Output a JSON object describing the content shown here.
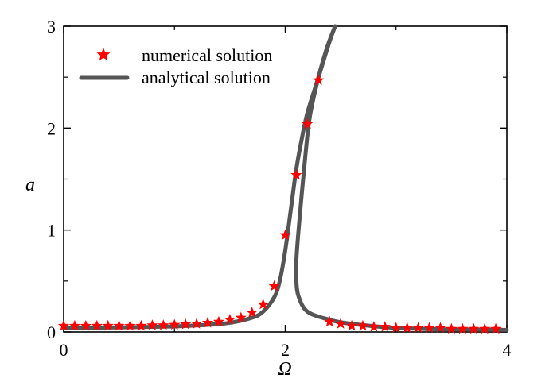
{
  "chart_data": {
    "type": "scatter",
    "xlabel": "Ω",
    "ylabel": "a",
    "xlim": [
      0,
      4
    ],
    "ylim": [
      0,
      3
    ],
    "x_ticks": [
      0,
      2,
      4
    ],
    "y_ticks": [
      0,
      1,
      2,
      3
    ],
    "grid": false,
    "legend_position": "top-left",
    "series": [
      {
        "name": "numerical solution",
        "kind": "markers",
        "marker": "star",
        "color": "#ff0000",
        "points": [
          [
            0.0,
            0.06
          ],
          [
            0.1,
            0.06
          ],
          [
            0.2,
            0.06
          ],
          [
            0.3,
            0.06
          ],
          [
            0.4,
            0.06
          ],
          [
            0.5,
            0.06
          ],
          [
            0.6,
            0.06
          ],
          [
            0.7,
            0.06
          ],
          [
            0.8,
            0.065
          ],
          [
            0.9,
            0.065
          ],
          [
            1.0,
            0.07
          ],
          [
            1.1,
            0.075
          ],
          [
            1.2,
            0.08
          ],
          [
            1.3,
            0.09
          ],
          [
            1.4,
            0.1
          ],
          [
            1.5,
            0.12
          ],
          [
            1.6,
            0.14
          ],
          [
            1.7,
            0.19
          ],
          [
            1.8,
            0.27
          ],
          [
            1.9,
            0.45
          ],
          [
            2.0,
            0.95
          ],
          [
            2.1,
            1.54
          ],
          [
            2.2,
            2.04
          ],
          [
            2.3,
            2.47
          ],
          [
            2.4,
            0.1
          ],
          [
            2.5,
            0.08
          ],
          [
            2.6,
            0.06
          ],
          [
            2.7,
            0.06
          ],
          [
            2.8,
            0.05
          ],
          [
            2.9,
            0.05
          ],
          [
            3.0,
            0.04
          ],
          [
            3.1,
            0.04
          ],
          [
            3.2,
            0.04
          ],
          [
            3.3,
            0.04
          ],
          [
            3.4,
            0.04
          ],
          [
            3.5,
            0.03
          ],
          [
            3.6,
            0.03
          ],
          [
            3.7,
            0.03
          ],
          [
            3.8,
            0.03
          ],
          [
            3.9,
            0.03
          ]
        ]
      },
      {
        "name": "analytical solution",
        "kind": "line",
        "color": "#555555",
        "segments": [
          [
            [
              0.0,
              0.04
            ],
            [
              0.5,
              0.045
            ],
            [
              1.0,
              0.055
            ],
            [
              1.3,
              0.07
            ],
            [
              1.5,
              0.09
            ],
            [
              1.7,
              0.14
            ],
            [
              1.8,
              0.2
            ],
            [
              1.9,
              0.34
            ],
            [
              1.95,
              0.5
            ],
            [
              2.0,
              0.8
            ],
            [
              2.05,
              1.2
            ],
            [
              2.1,
              1.6
            ],
            [
              2.15,
              1.9
            ],
            [
              2.2,
              2.15
            ],
            [
              2.3,
              2.5
            ],
            [
              2.4,
              2.85
            ],
            [
              2.45,
              3.0
            ]
          ],
          [
            [
              2.45,
              3.0
            ],
            [
              2.38,
              2.8
            ],
            [
              2.3,
              2.5
            ],
            [
              2.22,
              2.1
            ],
            [
              2.17,
              1.6
            ],
            [
              2.12,
              1.0
            ],
            [
              2.1,
              0.7
            ],
            [
              2.1,
              0.5
            ],
            [
              2.12,
              0.35
            ],
            [
              2.2,
              0.2
            ],
            [
              2.4,
              0.12
            ],
            [
              2.6,
              0.08
            ],
            [
              3.0,
              0.04
            ],
            [
              3.5,
              0.025
            ],
            [
              4.0,
              0.02
            ]
          ]
        ]
      }
    ]
  }
}
